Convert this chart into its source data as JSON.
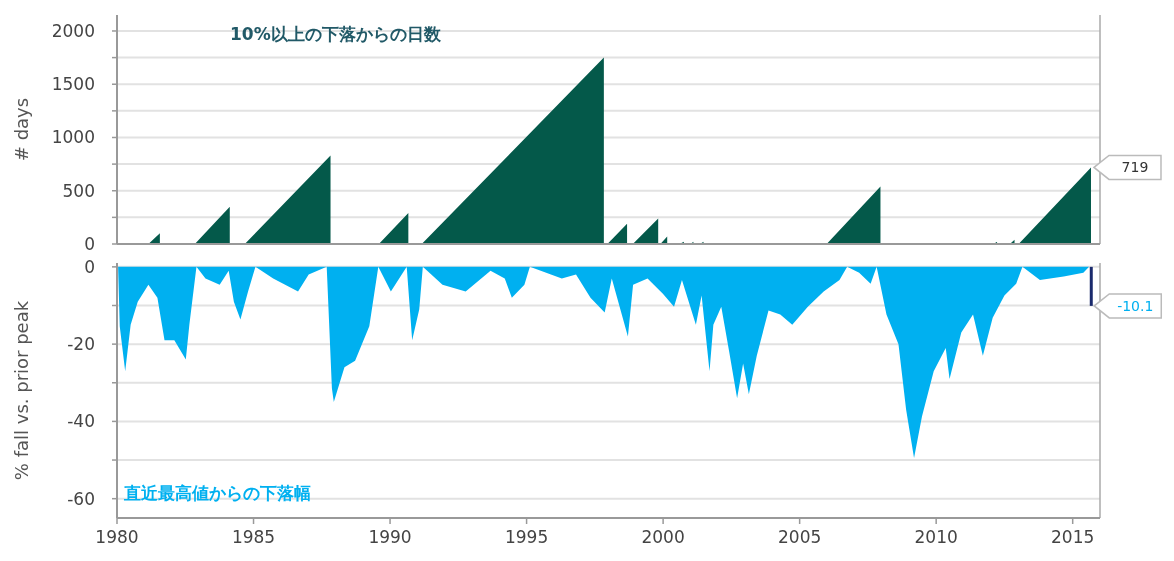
{
  "chart_data": [
    {
      "type": "area",
      "title": "10%以上の下落からの日数",
      "ylabel": "# days",
      "xlim": [
        1980,
        2016
      ],
      "ylim": [
        0,
        2150
      ],
      "tick_labels": "y",
      "grid": "y",
      "yticks": [
        0,
        {
          "value": 250,
          "label": null
        },
        500,
        {
          "value": 750,
          "label": null
        },
        1000,
        {
          "value": 1250,
          "label": null
        },
        1500,
        {
          "value": 1750,
          "label": null
        },
        2000
      ],
      "series": [
        {
          "color": "#04594a",
          "x": [
            1980,
            1981.15,
            1981.57,
            1981.57,
            1982.85,
            1984.13,
            1984.13,
            1984.68,
            1987.82,
            1987.82,
            1989.59,
            1990.67,
            1990.67,
            1991.16,
            1997.83,
            1997.83,
            1997.96,
            1998.68,
            1998.68,
            1998.89,
            1999.82,
            1999.82,
            1999.9,
            2000.15,
            2000.15,
            2000.6,
            2000.76,
            2000.76,
            2001.0,
            2001.11,
            2001.11,
            2001.35,
            2001.48,
            2001.48,
            2005.99,
            2007.96,
            2007.96,
            2012.1,
            2012.23,
            2012.23,
            2012.7,
            2012.87,
            2012.87,
            2013.02,
            2015.67
          ],
          "values": [
            0,
            0,
            100,
            0,
            0,
            350,
            0,
            0,
            830,
            0,
            0,
            290,
            0,
            0,
            1750,
            0,
            0,
            190,
            0,
            0,
            240,
            0,
            0,
            70,
            0,
            0,
            20,
            0,
            0,
            20,
            0,
            0,
            20,
            0,
            0,
            540,
            0,
            0,
            20,
            0,
            0,
            40,
            0,
            0,
            719
          ]
        }
      ],
      "annotations": [
        {
          "text": "719",
          "x": 2015.67,
          "y": 719
        }
      ]
    },
    {
      "type": "area",
      "title": "直近最高値からの下落幅",
      "ylabel": "% fall vs. prior peak",
      "xlim": [
        1980,
        2016
      ],
      "ylim": [
        -65,
        1
      ],
      "grid": "y",
      "xticks": [
        1980,
        1985,
        1990,
        1995,
        2000,
        2005,
        2010,
        2015
      ],
      "yticks": [
        -60,
        {
          "value": -50,
          "label": null
        },
        -40,
        {
          "value": -30,
          "label": null
        },
        -20,
        {
          "value": -10,
          "label": null
        },
        0
      ],
      "series": [
        {
          "color": "#00b0f0",
          "x": [
            1980.04,
            1980.1,
            1980.3,
            1980.5,
            1980.76,
            1981.15,
            1981.48,
            1981.74,
            1982.1,
            1982.52,
            1982.65,
            1982.91,
            1983.24,
            1983.76,
            1984.09,
            1984.28,
            1984.52,
            1984.8,
            1985.07,
            1985.72,
            1986.63,
            1987.02,
            1987.68,
            1987.87,
            1987.94,
            1988.33,
            1988.72,
            1989.24,
            1989.57,
            1990.03,
            1990.61,
            1990.81,
            1991.07,
            1991.2,
            1991.92,
            1992.77,
            1993.68,
            1994.2,
            1994.46,
            1994.92,
            1995.12,
            1996.29,
            1996.81,
            1997.34,
            1997.86,
            1998.12,
            1998.71,
            1998.9,
            1999.43,
            2000.0,
            2000.4,
            2000.69,
            2001.2,
            2001.41,
            2001.7,
            2001.84,
            2002.13,
            2002.42,
            2002.71,
            2002.93,
            2003.14,
            2003.43,
            2003.86,
            2004.29,
            2004.73,
            2005.3,
            2005.88,
            2006.46,
            2006.74,
            2007.18,
            2007.6,
            2007.82,
            2008.18,
            2008.62,
            2008.9,
            2009.19,
            2009.48,
            2009.91,
            2010.35,
            2010.49,
            2010.92,
            2011.35,
            2011.71,
            2012.07,
            2012.5,
            2012.93,
            2013.16,
            2013.8,
            2014.67,
            2015.39,
            2015.6
          ],
          "values": [
            0,
            -15.4,
            -27,
            -15,
            -9,
            -4.6,
            -8,
            -19,
            -19,
            -24,
            -15,
            0,
            -3,
            -4.6,
            -1,
            -9,
            -13.6,
            -6.4,
            0,
            -3,
            -6.4,
            -2,
            0,
            -31.4,
            -35,
            -26,
            -24.3,
            -15.4,
            0,
            -6.4,
            0,
            -19,
            -11,
            0,
            -4.6,
            -6.4,
            -1,
            -3,
            -8,
            -4.6,
            0,
            -3,
            -2,
            -8,
            -11.8,
            -3,
            -18,
            -4.6,
            -3,
            -7,
            -10.3,
            -3.4,
            -15,
            -7.4,
            -27,
            -15,
            -10.3,
            -22,
            -34,
            -25,
            -33,
            -23,
            -11.3,
            -12.3,
            -15,
            -10.3,
            -6.4,
            -3.4,
            0,
            -1.5,
            -4.4,
            0,
            -12.3,
            -20,
            -37,
            -49.5,
            -38.7,
            -27,
            -21,
            -29,
            -17,
            -12.3,
            -23,
            -13.2,
            -7.4,
            -4.4,
            0,
            -3.4,
            -2.5,
            -1.5,
            0
          ]
        },
        {
          "type": "line",
          "color": "#1a2a6c",
          "x": [
            2015.68,
            2015.68
          ],
          "values": [
            0,
            -10.1
          ]
        }
      ],
      "annotations": [
        {
          "text": "-10.1",
          "x": 2015.68,
          "y": -10.1
        }
      ]
    }
  ]
}
